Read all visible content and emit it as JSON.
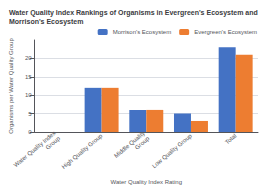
{
  "chart_data": {
    "type": "bar",
    "title": "Water Quality Index Rankings of Organisms in Evergreen's Ecosystem and Morrison's Ecosystem",
    "xlabel": "Water Quality Index Rating",
    "ylabel": "Organisms per Water Quality Group",
    "categories": [
      "Water Quality Index\nGroup",
      "High Quality Group",
      "Middle Quality\nGroup",
      "Low Quality Group",
      "Total"
    ],
    "series": [
      {
        "name": "Morrison's Ecosystem",
        "color": "#4472C4",
        "values": [
          0,
          12,
          6,
          5,
          23
        ]
      },
      {
        "name": "Evergreen's Ecosystem",
        "color": "#ED7D31",
        "values": [
          0,
          12,
          6,
          3,
          21
        ]
      }
    ],
    "ylim": [
      0,
      25
    ],
    "yticks": [
      0,
      5,
      10,
      15,
      20
    ],
    "grid": true,
    "legend": "upper right"
  }
}
